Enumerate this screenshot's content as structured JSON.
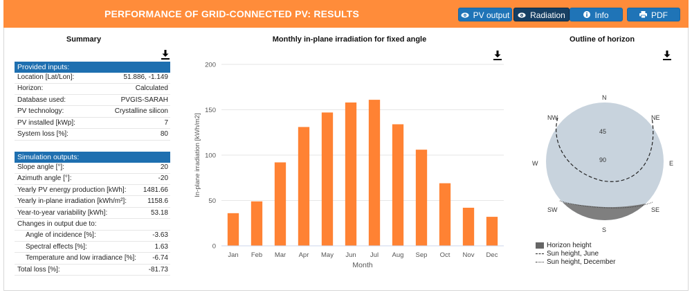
{
  "header": {
    "title": "PERFORMANCE OF GRID-CONNECTED PV: RESULTS",
    "buttons": [
      {
        "label": "PV output",
        "icon": "eye-icon"
      },
      {
        "label": "Radiation",
        "icon": "eye-icon",
        "active": true
      },
      {
        "label": "Info",
        "icon": "info-icon"
      },
      {
        "label": "PDF",
        "icon": "print-icon"
      }
    ],
    "color": "#ff8c3a"
  },
  "summary": {
    "title": "Summary",
    "provided_title": "Provided inputs:",
    "provided": [
      {
        "k": "Location [Lat/Lon]:",
        "v": "51.886, -1.149"
      },
      {
        "k": "Horizon:",
        "v": "Calculated"
      },
      {
        "k": "Database used:",
        "v": "PVGIS-SARAH"
      },
      {
        "k": "PV technology:",
        "v": "Crystalline silicon"
      },
      {
        "k": "PV installed [kWp]:",
        "v": "7"
      },
      {
        "k": "System loss [%]:",
        "v": "80"
      }
    ],
    "outputs_title": "Simulation outputs:",
    "outputs": [
      {
        "k": "Slope angle [°]:",
        "v": "20"
      },
      {
        "k": "Azimuth angle [°]:",
        "v": "-20"
      },
      {
        "k": "Yearly PV energy production [kWh]:",
        "v": "1481.66"
      },
      {
        "k": "Yearly in-plane irradiation [kWh/m²]:",
        "v": "1158.6"
      },
      {
        "k": "Year-to-year variability [kWh]:",
        "v": "53.18"
      },
      {
        "k": "Changes in output due to:",
        "v": ""
      },
      {
        "k": "Angle of incidence [%]:",
        "v": "-3.63",
        "sub": true
      },
      {
        "k": "Spectral effects [%]:",
        "v": "1.63",
        "sub": true
      },
      {
        "k": "Temperature and low irradiance [%]:",
        "v": "-6.74",
        "sub": true
      },
      {
        "k": "Total loss [%]:",
        "v": "-81.73"
      }
    ]
  },
  "chart": {
    "title": "Monthly in-plane irradiation for fixed angle",
    "bar_color": "#ff8233"
  },
  "chart_data": {
    "type": "bar",
    "title": "Monthly in-plane irradiation for fixed angle",
    "categories": [
      "Jan",
      "Feb",
      "Mar",
      "Apr",
      "May",
      "Jun",
      "Jul",
      "Aug",
      "Sep",
      "Oct",
      "Nov",
      "Dec"
    ],
    "values": [
      36,
      49,
      92,
      131,
      147,
      158,
      161,
      134,
      106,
      69,
      42,
      32
    ],
    "xlabel": "Month",
    "ylabel": "In-plane irradiation [kWh/m2]",
    "ylim": [
      0,
      200
    ],
    "yticks": [
      0,
      50,
      100,
      150,
      200
    ],
    "grid": true,
    "legend": "none"
  },
  "horizon": {
    "title": "Outline of horizon",
    "directions": {
      "n": "N",
      "ne": "NE",
      "e": "E",
      "se": "SE",
      "s": "S",
      "sw": "SW",
      "w": "W",
      "nw": "NW"
    },
    "rings": {
      "r45": "45",
      "r90": "90"
    },
    "legend": [
      {
        "label": "Horizon height",
        "kind": "fill"
      },
      {
        "label": "Sun height, June",
        "kind": "dashed"
      },
      {
        "label": "Sun height, December",
        "kind": "dotted"
      }
    ],
    "disk_color": "#c8d3dd",
    "horizon_color": "#808080"
  }
}
